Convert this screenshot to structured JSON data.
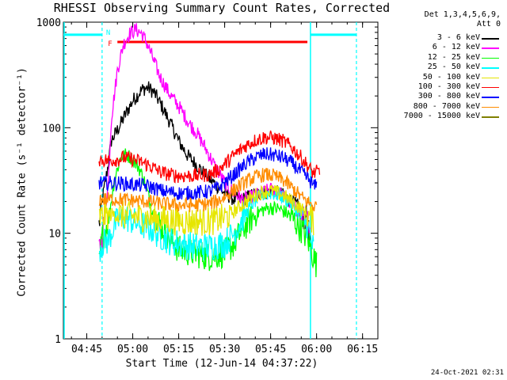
{
  "chart_data": {
    "type": "line",
    "title": "RHESSI Observing Summary Count Rates, Corrected",
    "xlabel": "Start Time (12-Jun-14 04:37:22)",
    "ylabel": "Corrected Count Rate (s⁻¹ detector⁻¹)",
    "yscale": "log",
    "ylim": [
      1,
      1000
    ],
    "xlim": [
      "04:37:22",
      "06:20:00"
    ],
    "x_ticks": [
      "04:45",
      "05:00",
      "05:15",
      "05:30",
      "05:45",
      "06:00",
      "06:15"
    ],
    "y_ticks": [
      "1",
      "10",
      "100",
      "1000"
    ],
    "legend_header": [
      "Det 1,3,4,5,6,9,",
      "Att 0"
    ],
    "legend_position": "right",
    "series": [
      {
        "name": "3 - 6 keV",
        "color": "#000000",
        "x": [
          "04:49",
          "04:50",
          "04:52",
          "04:53",
          "04:55",
          "04:58",
          "05:00",
          "05:03",
          "05:05",
          "05:07",
          "05:09",
          "05:12",
          "05:15",
          "05:18",
          "05:21",
          "05:24",
          "05:27",
          "05:30",
          "05:33",
          "05:36",
          "05:39",
          "05:42",
          "05:45",
          "05:48",
          "05:51",
          "05:54",
          "05:57",
          "05:58"
        ],
        "values": [
          12,
          20,
          45,
          75,
          95,
          140,
          180,
          230,
          240,
          215,
          170,
          115,
          75,
          54,
          44,
          35,
          29,
          24,
          21,
          21,
          23,
          24,
          25,
          24,
          21,
          18,
          13,
          7
        ]
      },
      {
        "name": "6 - 12 keV",
        "color": "#ff00ff",
        "x": [
          "04:49",
          "04:50",
          "04:52",
          "04:53",
          "04:55",
          "04:57",
          "04:59",
          "05:01",
          "05:03",
          "05:05",
          "05:07",
          "05:09",
          "05:12",
          "05:15",
          "05:18",
          "05:21",
          "05:24",
          "05:27",
          "05:30",
          "05:33",
          "05:36",
          "05:39",
          "05:42",
          "05:45",
          "05:48",
          "05:51",
          "05:54",
          "05:57",
          "05:58"
        ],
        "values": [
          7,
          9,
          30,
          120,
          350,
          620,
          780,
          850,
          780,
          600,
          420,
          300,
          210,
          160,
          115,
          88,
          62,
          42,
          30,
          24,
          21,
          22,
          24,
          26,
          24,
          20,
          16,
          12,
          8
        ]
      },
      {
        "name": "12 - 25 keV",
        "color": "#00ff00",
        "x": [
          "04:49",
          "04:50",
          "04:52",
          "04:54",
          "04:56",
          "04:58",
          "05:00",
          "05:02",
          "05:04",
          "05:06",
          "05:09",
          "05:12",
          "05:15",
          "05:20",
          "05:25",
          "05:30",
          "05:33",
          "05:36",
          "05:39",
          "05:42",
          "05:45",
          "05:48",
          "05:51",
          "05:54",
          "05:57",
          "05:59",
          "06:00"
        ],
        "values": [
          5,
          9,
          13,
          32,
          52,
          56,
          50,
          42,
          30,
          18,
          12,
          9,
          7,
          6.5,
          6,
          6.5,
          8,
          11,
          14,
          16.5,
          17.5,
          17,
          15,
          12,
          9,
          6,
          5
        ]
      },
      {
        "name": "25 - 50 keV",
        "color": "#00ffff",
        "x": [
          "04:49",
          "04:50",
          "04:52",
          "04:54",
          "04:56",
          "04:58",
          "05:00",
          "05:03",
          "05:06",
          "05:09",
          "05:12",
          "05:15",
          "05:20",
          "05:25",
          "05:30",
          "05:33",
          "05:36",
          "05:39",
          "05:42",
          "05:45",
          "05:48",
          "05:51",
          "05:54",
          "05:57",
          "05:59"
        ],
        "values": [
          7,
          8,
          8.5,
          12,
          14,
          14,
          13,
          12,
          11,
          9.5,
          8.5,
          8,
          7.5,
          7.5,
          8,
          10,
          14,
          19,
          23,
          24,
          23,
          20,
          16,
          12,
          7
        ]
      },
      {
        "name": "50 - 100 keV",
        "color": "#e6e600",
        "x": [
          "04:49",
          "04:52",
          "04:55",
          "05:00",
          "05:05",
          "05:10",
          "05:15",
          "05:20",
          "05:25",
          "05:28",
          "05:31",
          "05:34",
          "05:37",
          "05:40",
          "05:43",
          "05:46",
          "05:49",
          "05:52",
          "05:55",
          "05:58",
          "05:59"
        ],
        "values": [
          14,
          15,
          15,
          14.5,
          14,
          13.5,
          13,
          13,
          13,
          13.5,
          14.5,
          17,
          20,
          23,
          25,
          25,
          23,
          20,
          17,
          14,
          13
        ]
      },
      {
        "name": "100 - 300 keV",
        "color": "#ff0000",
        "x": [
          "04:49",
          "04:52",
          "04:55",
          "04:57",
          "05:00",
          "05:03",
          "05:06",
          "05:09",
          "05:12",
          "05:15",
          "05:20",
          "05:25",
          "05:28",
          "05:31",
          "05:34",
          "05:37",
          "05:40",
          "05:43",
          "05:46",
          "05:49",
          "05:52",
          "05:55",
          "05:58",
          "05:59",
          "06:00",
          "06:01"
        ],
        "values": [
          50,
          49,
          50,
          52,
          50,
          47,
          43,
          38,
          36,
          35,
          35,
          36,
          40,
          48,
          58,
          68,
          76,
          81,
          80,
          75,
          65,
          52,
          40,
          37,
          38,
          38
        ]
      },
      {
        "name": "300 - 800 keV",
        "color": "#0000ff",
        "x": [
          "04:49",
          "04:52",
          "04:55",
          "05:00",
          "05:05",
          "05:10",
          "05:15",
          "05:20",
          "05:25",
          "05:28",
          "05:31",
          "05:34",
          "05:37",
          "05:40",
          "05:43",
          "05:46",
          "05:49",
          "05:52",
          "05:55",
          "05:58",
          "05:59",
          "06:00"
        ],
        "values": [
          30,
          30,
          30,
          29,
          28,
          25,
          24,
          24,
          25,
          27,
          32,
          38,
          46,
          52,
          56,
          55,
          52,
          46,
          38,
          31,
          28,
          28
        ]
      },
      {
        "name": "800 - 7000 keV",
        "color": "#ff8c00",
        "x": [
          "04:49",
          "04:52",
          "04:55",
          "05:00",
          "05:05",
          "05:10",
          "05:15",
          "05:20",
          "05:25",
          "05:28",
          "05:31",
          "05:34",
          "05:37",
          "05:40",
          "05:43",
          "05:46",
          "05:49",
          "05:52",
          "05:55",
          "05:58",
          "05:59",
          "06:00"
        ],
        "values": [
          21,
          21,
          21,
          20.5,
          20,
          19,
          18.5,
          18.5,
          19,
          20.5,
          23,
          27,
          31,
          34,
          36,
          35,
          32,
          27,
          22,
          19,
          18,
          18
        ]
      },
      {
        "name": "7000 - 15000 keV",
        "color": "#808000",
        "x": [],
        "values": []
      }
    ],
    "annotations": {
      "flare_flag": {
        "label": "F",
        "color": "#ff0000",
        "x_start": "04:55",
        "x_end": "05:57",
        "level": 650
      },
      "night_flag": {
        "label": "N",
        "color": "#00ffff",
        "level": 760,
        "segments": [
          [
            "04:37:22",
            "04:50"
          ],
          [
            "05:58",
            "06:13"
          ]
        ]
      },
      "cyan_boundaries": {
        "solid": [
          "04:37:22",
          "05:58"
        ],
        "dashed": [
          "04:50",
          "06:13"
        ]
      }
    }
  },
  "footer_timestamp": "24-Oct-2021 02:31"
}
